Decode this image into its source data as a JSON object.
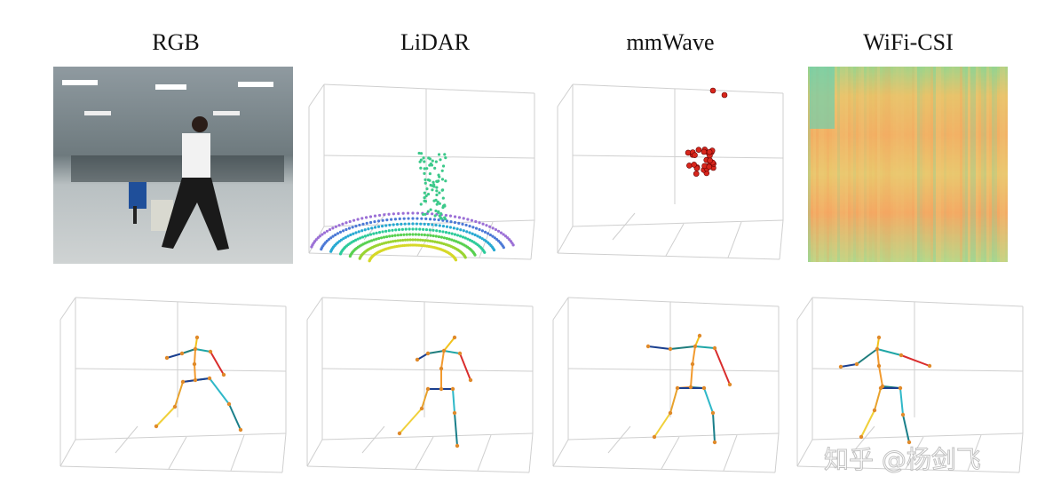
{
  "columns": [
    {
      "title": "RGB"
    },
    {
      "title": "LiDAR"
    },
    {
      "title": "mmWave"
    },
    {
      "title": "WiFi-CSI"
    }
  ],
  "watermark": "知乎 @杨剑飞"
}
